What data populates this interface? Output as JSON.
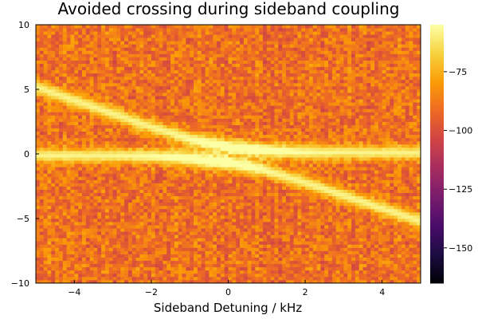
{
  "chart_data": {
    "type": "heatmap",
    "title": "Avoided crossing during sideband coupling",
    "xlabel": "Sideband Detuning / kHz",
    "ylabel": "",
    "xlim": [
      -5,
      5
    ],
    "ylim": [
      -10,
      10
    ],
    "x_ticks": [
      -4,
      -2,
      0,
      2,
      4
    ],
    "y_ticks": [
      -10,
      -5,
      0,
      5,
      10
    ],
    "colorbar": {
      "range": [
        -165,
        -55
      ],
      "ticks": [
        -150,
        -125,
        -100,
        -75
      ],
      "colormap": "inferno",
      "colors": [
        "#000004",
        "#1b0c41",
        "#4a0c6b",
        "#781c6d",
        "#a52c60",
        "#cf4446",
        "#ed6925",
        "#fb9b06",
        "#f7d13d",
        "#fcffa4"
      ]
    },
    "background_level": -90,
    "peak_level": -58,
    "branches": [
      {
        "points": [
          [
            -5,
            5.2
          ],
          [
            -2,
            2.1
          ],
          [
            -1,
            1.2
          ],
          [
            0,
            0.6
          ],
          [
            1,
            0.3
          ],
          [
            2,
            0.15
          ],
          [
            5,
            0.1
          ]
        ]
      },
      {
        "points": [
          [
            -5,
            -0.1
          ],
          [
            -2,
            -0.15
          ],
          [
            -1,
            -0.35
          ],
          [
            0,
            -0.7
          ],
          [
            1,
            -1.3
          ],
          [
            2,
            -2.2
          ],
          [
            5,
            -5.2
          ]
        ]
      }
    ],
    "grid": false,
    "legend": "none"
  }
}
